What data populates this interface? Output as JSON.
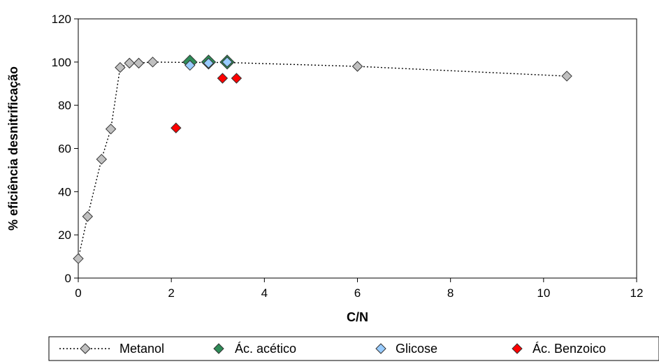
{
  "chart_data": {
    "type": "scatter",
    "title": "",
    "xlabel": "C/N",
    "ylabel": "% eficiência desnitrificação",
    "xlim": [
      0,
      12
    ],
    "ylim": [
      0,
      120
    ],
    "xticks": [
      0,
      2,
      4,
      6,
      8,
      10,
      12
    ],
    "yticks": [
      0,
      20,
      40,
      60,
      80,
      100,
      120
    ],
    "grid": false,
    "legend_position": "bottom",
    "series": [
      {
        "name": "Metanol",
        "color": "#c0c0c0",
        "line": "dotted",
        "marker": "diamond",
        "points": [
          {
            "x": 0,
            "y": 9
          },
          {
            "x": 0.2,
            "y": 28.5
          },
          {
            "x": 0.5,
            "y": 55
          },
          {
            "x": 0.7,
            "y": 69
          },
          {
            "x": 0.9,
            "y": 97.5
          },
          {
            "x": 1.1,
            "y": 99.5
          },
          {
            "x": 1.3,
            "y": 99.5
          },
          {
            "x": 1.6,
            "y": 100
          },
          {
            "x": 2.4,
            "y": 99.8
          },
          {
            "x": 2.8,
            "y": 99.8
          },
          {
            "x": 3.2,
            "y": 99.8
          },
          {
            "x": 6,
            "y": 98
          },
          {
            "x": 10.5,
            "y": 93.5
          }
        ]
      },
      {
        "name": "Ác. acético",
        "color": "#2e8b57",
        "line": "none",
        "marker": "diamond-large",
        "points": [
          {
            "x": 2.4,
            "y": 100
          },
          {
            "x": 2.8,
            "y": 100
          },
          {
            "x": 3.2,
            "y": 100
          }
        ]
      },
      {
        "name": "Glicose",
        "color": "#99ccff",
        "line": "none",
        "marker": "diamond",
        "points": [
          {
            "x": 2.4,
            "y": 98.5
          },
          {
            "x": 2.8,
            "y": 99.5
          },
          {
            "x": 3.2,
            "y": 100
          }
        ]
      },
      {
        "name": "Ác. Benzoico",
        "color": "#ff0000",
        "line": "none",
        "marker": "diamond",
        "points": [
          {
            "x": 2.1,
            "y": 69.5
          },
          {
            "x": 3.1,
            "y": 92.5
          },
          {
            "x": 3.4,
            "y": 92.5
          }
        ]
      }
    ]
  }
}
